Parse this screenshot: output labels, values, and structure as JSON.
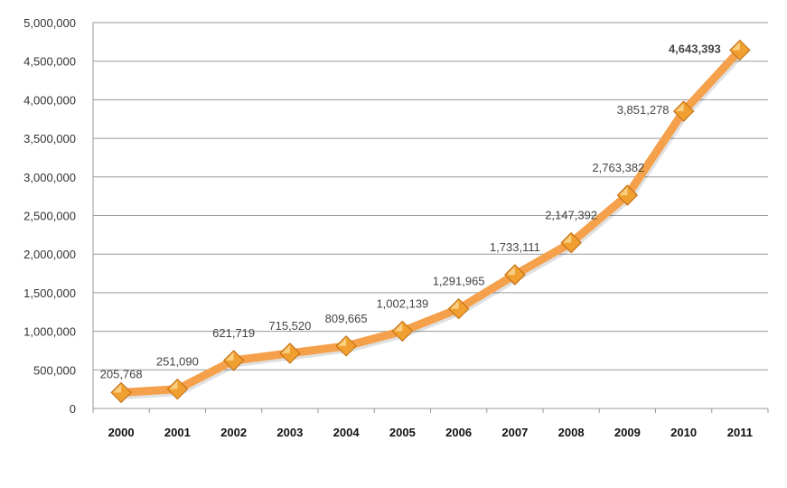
{
  "chart_data": {
    "type": "line",
    "title": "",
    "xlabel": "",
    "ylabel": "",
    "categories": [
      "2000",
      "2001",
      "2002",
      "2003",
      "2004",
      "2005",
      "2006",
      "2007",
      "2008",
      "2009",
      "2010",
      "2011"
    ],
    "series": [
      {
        "values": [
          205768,
          251090,
          621719,
          715520,
          809665,
          1002139,
          1291965,
          1733111,
          2147392,
          2763382,
          3851278,
          4643393
        ],
        "labels": [
          "205,768",
          "251,090",
          "621,719",
          "715,520",
          "809,665",
          "1,002,139",
          "1,291,965",
          "1,733,111",
          "2,147,392",
          "2,763,382",
          "3,851,278",
          "4,643,393"
        ]
      }
    ],
    "ylim": [
      0,
      5000000
    ],
    "yticks": [
      0,
      500000,
      1000000,
      1500000,
      2000000,
      2500000,
      3000000,
      3500000,
      4000000,
      4500000,
      5000000
    ],
    "ytick_labels": [
      "0",
      "500,000",
      "1,000,000",
      "1,500,000",
      "2,000,000",
      "2,500,000",
      "3,000,000",
      "3,500,000",
      "4,000,000",
      "4,500,000",
      "5,000,000"
    ],
    "grid": true,
    "legend": "none",
    "colors": {
      "line": "#f5a04a",
      "marker": "#f0a030",
      "marker_highlight": "#fbd48a",
      "marker_edge": "#c06a10",
      "grid": "#9a9a9a",
      "axis": "#9a9a9a"
    }
  }
}
